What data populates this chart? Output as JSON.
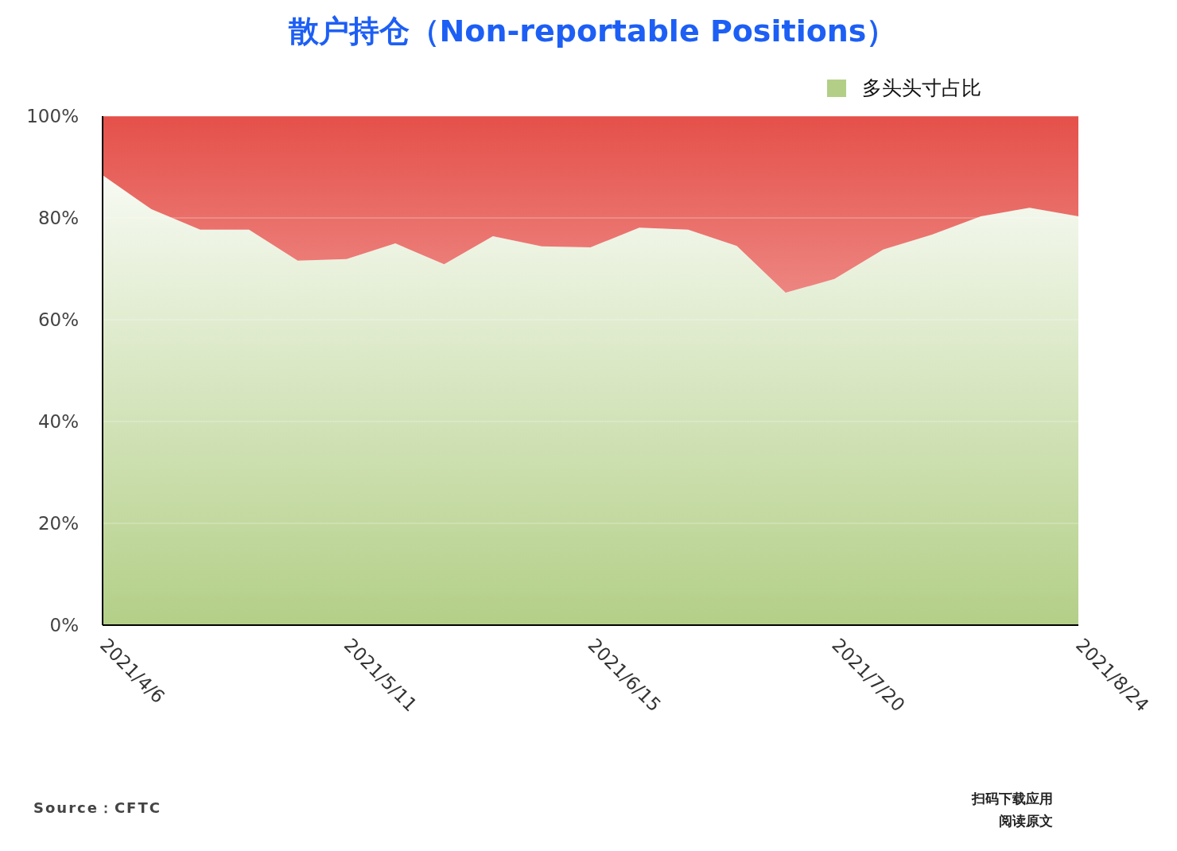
{
  "chart_data": {
    "type": "area",
    "title": "散户持仓（Non-reportable Positions）",
    "categories": [
      "2021/4/6",
      null,
      null,
      null,
      null,
      "2021/5/11",
      null,
      null,
      null,
      null,
      "2021/6/15",
      null,
      null,
      null,
      null,
      "2021/7/20",
      null,
      null,
      null,
      null,
      "2021/8/24"
    ],
    "stacked": true,
    "series": [
      {
        "name": "多头头寸占比",
        "color": "#b3cf87",
        "values": [
          88.4,
          81.7,
          77.7,
          77.7,
          71.6,
          71.9,
          75.0,
          70.9,
          76.4,
          74.4,
          74.2,
          78.1,
          77.7,
          74.5,
          65.3,
          68.0,
          73.8,
          76.7,
          80.3,
          82.0,
          80.3
        ]
      },
      {
        "color": "#e5504a",
        "values": [
          11.6,
          18.3,
          22.3,
          22.3,
          28.4,
          28.1,
          25.0,
          29.1,
          23.6,
          25.6,
          25.8,
          21.9,
          22.3,
          25.5,
          34.7,
          32.0,
          26.2,
          23.3,
          19.7,
          18.0,
          19.7
        ]
      }
    ],
    "ylim": [
      0,
      100
    ],
    "yticks": [
      {
        "value": 0,
        "label": "0%"
      },
      {
        "value": 20,
        "label": "20%"
      },
      {
        "value": 40,
        "label": "40%"
      },
      {
        "value": 60,
        "label": "60%"
      },
      {
        "value": 80,
        "label": "80%"
      },
      {
        "value": 100,
        "label": "100%"
      }
    ],
    "grid": "y",
    "legend": "top right",
    "annotations": [
      "Source：CFTC",
      "扫码下载应用",
      "阅读原文"
    ]
  }
}
